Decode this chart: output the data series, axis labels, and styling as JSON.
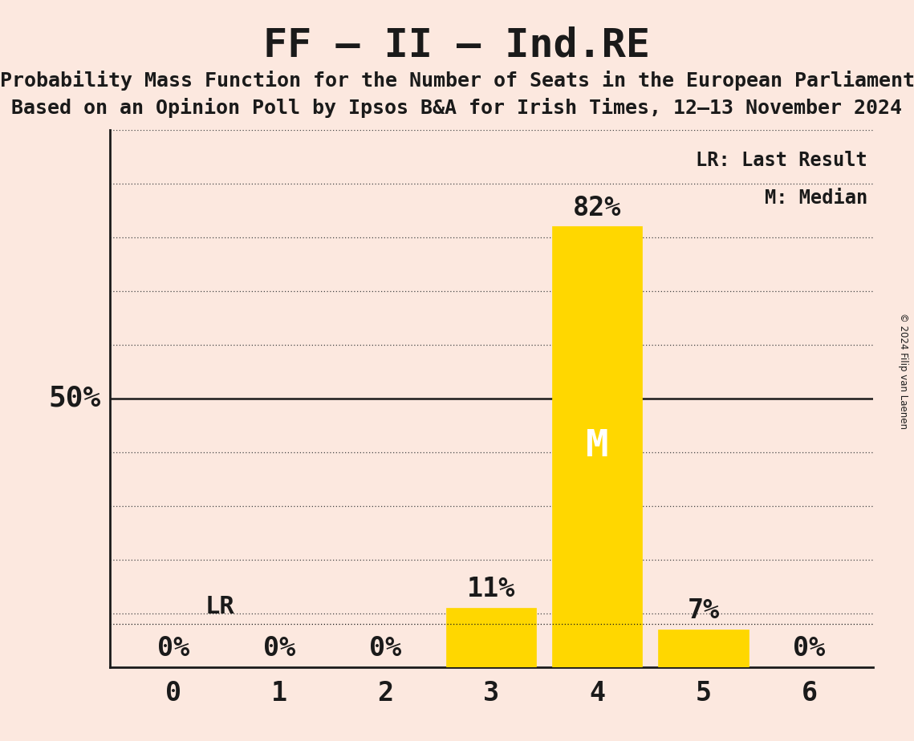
{
  "title": "FF – II – Ind.RE",
  "subtitle1": "Probability Mass Function for the Number of Seats in the European Parliament",
  "subtitle2": "Based on an Opinion Poll by Ipsos B&A for Irish Times, 12–13 November 2024",
  "copyright": "© 2024 Filip van Laenen",
  "categories": [
    0,
    1,
    2,
    3,
    4,
    5,
    6
  ],
  "values": [
    0,
    0,
    0,
    11,
    82,
    7,
    0
  ],
  "bar_color": "#FFD700",
  "median_bar_index": 4,
  "median_label": "M",
  "lr_value": 8,
  "lr_label": "LR",
  "background_color": "#fce8df",
  "ylabel_50": "50%",
  "legend_lr": "LR: Last Result",
  "legend_m": "M: Median",
  "ylim_max": 100,
  "yticks": [
    0,
    10,
    20,
    30,
    40,
    50,
    60,
    70,
    80,
    90,
    100
  ],
  "text_color": "#1a1a1a",
  "axis_color": "#1a1a1a",
  "grid_dotted_color": "#444444",
  "title_fontsize": 36,
  "subtitle_fontsize": 18,
  "bar_label_fontsize": 24,
  "tick_fontsize": 24,
  "ylabel_fontsize": 26,
  "legend_fontsize": 17,
  "median_fontsize": 34,
  "lr_fontsize": 22
}
